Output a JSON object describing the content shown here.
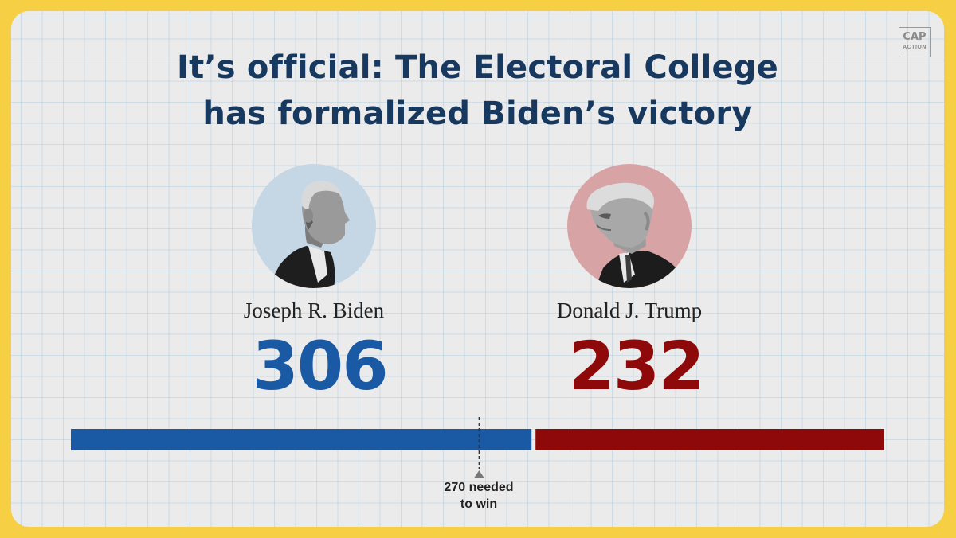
{
  "title": {
    "line1": "It’s official: The Electoral College",
    "line2": "has formalized Biden’s victory"
  },
  "logo": {
    "top": "CAP",
    "bottom": "ACTION"
  },
  "candidates": [
    {
      "name": "Joseph R. Biden",
      "votes": "306",
      "color": "#1a5aa5",
      "portrait_bg": "#c5d6e5"
    },
    {
      "name": "Donald J. Trump",
      "votes": "232",
      "color": "#8e0a0a",
      "portrait_bg": "#d8a3a5"
    }
  ],
  "threshold": {
    "label_line1": "270 needed",
    "label_line2": "to win"
  },
  "colors": {
    "frame": "#f6cf45",
    "background": "#ebebeb",
    "title": "#17385f"
  },
  "chart_data": {
    "type": "bar",
    "orientation": "horizontal-stacked",
    "title": "It’s official: The Electoral College has formalized Biden’s victory",
    "categories": [
      "Joseph R. Biden",
      "Donald J. Trump"
    ],
    "values": [
      306,
      232
    ],
    "total": 538,
    "threshold": 270,
    "threshold_label": "270 needed to win",
    "colors": [
      "#1a5aa5",
      "#8e0a0a"
    ]
  }
}
